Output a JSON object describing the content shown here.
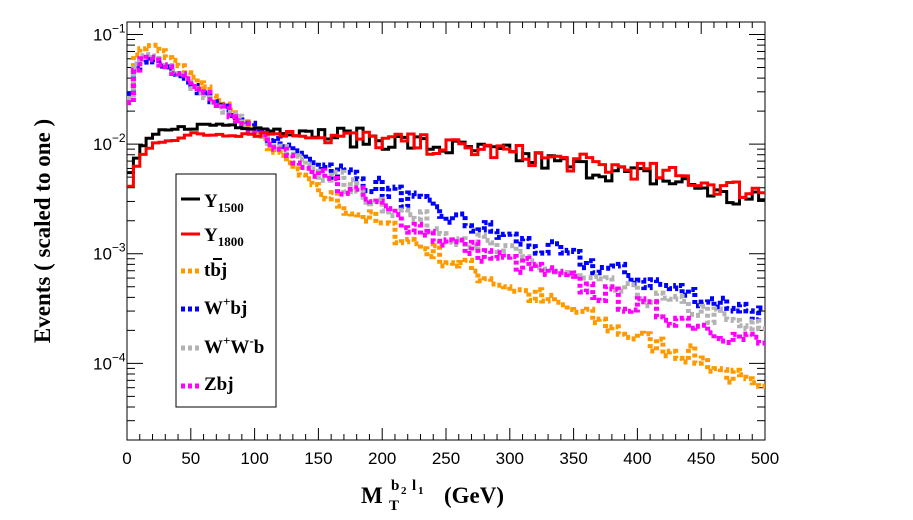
{
  "chart_data": {
    "type": "line",
    "xscale": "linear",
    "yscale": "log",
    "xlim": [
      0,
      500
    ],
    "ylim": [
      2e-05,
      0.13
    ],
    "xlabel": {
      "main": "M",
      "sub": "T",
      "sup": "b",
      "sup_sub": "2",
      "sup2": "l",
      "sup2_sub": "1",
      "unit": "(GeV)"
    },
    "ylabel": "Events  ( scaled to one )",
    "xticks": [
      0,
      50,
      100,
      150,
      200,
      250,
      300,
      350,
      400,
      450,
      500
    ],
    "yticks": [
      {
        "value": 0.1,
        "label": "10",
        "exp": "−1"
      },
      {
        "value": 0.01,
        "label": "10",
        "exp": "−2"
      },
      {
        "value": 0.001,
        "label": "10",
        "exp": "−3"
      },
      {
        "value": 0.0001,
        "label": "10",
        "exp": "−4"
      }
    ],
    "series": [
      {
        "name": "Y1500",
        "label_main": "Y",
        "label_sub": "1500",
        "color": "#000000",
        "style": "solid",
        "points": [
          [
            0,
            0.0045
          ],
          [
            10,
            0.009
          ],
          [
            25,
            0.0125
          ],
          [
            50,
            0.0145
          ],
          [
            75,
            0.0152
          ],
          [
            100,
            0.0145
          ],
          [
            125,
            0.013
          ],
          [
            150,
            0.0122
          ],
          [
            200,
            0.011
          ],
          [
            250,
            0.0093
          ],
          [
            300,
            0.008
          ],
          [
            350,
            0.0062
          ],
          [
            400,
            0.0052
          ],
          [
            450,
            0.0041
          ],
          [
            470,
            0.0032
          ],
          [
            500,
            0.003
          ]
        ]
      },
      {
        "name": "Y1800",
        "label_main": "Y",
        "label_sub": "1800",
        "color": "#ff0000",
        "style": "solid",
        "points": [
          [
            0,
            0.0035
          ],
          [
            10,
            0.0075
          ],
          [
            25,
            0.0108
          ],
          [
            50,
            0.012
          ],
          [
            75,
            0.0125
          ],
          [
            100,
            0.0125
          ],
          [
            125,
            0.0125
          ],
          [
            150,
            0.0118
          ],
          [
            200,
            0.0108
          ],
          [
            250,
            0.0095
          ],
          [
            300,
            0.0083
          ],
          [
            350,
            0.0068
          ],
          [
            400,
            0.0058
          ],
          [
            450,
            0.0046
          ],
          [
            470,
            0.004
          ],
          [
            500,
            0.0037
          ]
        ]
      },
      {
        "name": "tbj",
        "label_main": "tbj",
        "color": "#ff9900",
        "style": "dotted",
        "points": [
          [
            0,
            0.02
          ],
          [
            7,
            0.06
          ],
          [
            15,
            0.085
          ],
          [
            25,
            0.075
          ],
          [
            50,
            0.042
          ],
          [
            75,
            0.024
          ],
          [
            100,
            0.013
          ],
          [
            125,
            0.007
          ],
          [
            150,
            0.0038
          ],
          [
            175,
            0.0026
          ],
          [
            200,
            0.0018
          ],
          [
            250,
            0.0009
          ],
          [
            300,
            0.0005
          ],
          [
            350,
            0.0003
          ],
          [
            400,
            0.00017
          ],
          [
            450,
            0.00011
          ],
          [
            480,
            7e-05
          ],
          [
            500,
            5e-05
          ]
        ]
      },
      {
        "name": "W+bj",
        "label_main": "W",
        "label_sup": "+",
        "label_tail": "bj",
        "color": "#0000ff",
        "style": "dotted",
        "points": [
          [
            0,
            0.02
          ],
          [
            7,
            0.05
          ],
          [
            15,
            0.065
          ],
          [
            25,
            0.058
          ],
          [
            50,
            0.035
          ],
          [
            75,
            0.022
          ],
          [
            100,
            0.014
          ],
          [
            125,
            0.0095
          ],
          [
            150,
            0.0068
          ],
          [
            200,
            0.004
          ],
          [
            250,
            0.0022
          ],
          [
            300,
            0.0014
          ],
          [
            350,
            0.0009
          ],
          [
            400,
            0.0006
          ],
          [
            450,
            0.0004
          ],
          [
            480,
            0.00033
          ],
          [
            500,
            0.00028
          ]
        ]
      },
      {
        "name": "W+W-b",
        "label_main": "W",
        "label_sup": "+",
        "label_mid": "W",
        "label_sup2": "-",
        "label_tail": "b",
        "color": "#b3b3b3",
        "style": "dotted",
        "points": [
          [
            0,
            0.017
          ],
          [
            7,
            0.05
          ],
          [
            15,
            0.066
          ],
          [
            25,
            0.058
          ],
          [
            50,
            0.036
          ],
          [
            75,
            0.022
          ],
          [
            100,
            0.013
          ],
          [
            125,
            0.0085
          ],
          [
            150,
            0.0058
          ],
          [
            200,
            0.0029
          ],
          [
            250,
            0.0016
          ],
          [
            300,
            0.001
          ],
          [
            350,
            0.0006
          ],
          [
            400,
            0.00042
          ],
          [
            450,
            0.0003
          ],
          [
            480,
            0.00022
          ],
          [
            500,
            0.0002
          ]
        ]
      },
      {
        "name": "Zbj",
        "label_main": "Zbj",
        "color": "#ff00ff",
        "style": "dotted",
        "points": [
          [
            0,
            0.015
          ],
          [
            7,
            0.048
          ],
          [
            15,
            0.064
          ],
          [
            25,
            0.058
          ],
          [
            50,
            0.036
          ],
          [
            75,
            0.022
          ],
          [
            100,
            0.0135
          ],
          [
            125,
            0.008
          ],
          [
            150,
            0.0052
          ],
          [
            200,
            0.0026
          ],
          [
            250,
            0.0013
          ],
          [
            300,
            0.00085
          ],
          [
            350,
            0.00055
          ],
          [
            400,
            0.00033
          ],
          [
            450,
            0.00023
          ],
          [
            480,
            0.00017
          ],
          [
            500,
            0.00015
          ]
        ]
      }
    ]
  }
}
